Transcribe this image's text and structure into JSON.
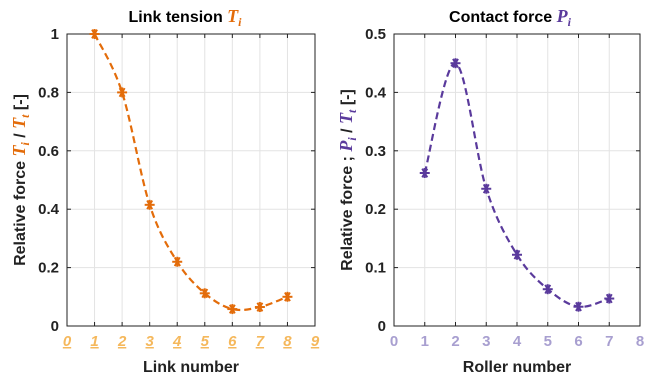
{
  "chart_data": [
    {
      "type": "line",
      "title": "Link tension ",
      "title_symbol": "T",
      "title_subscript": "i",
      "xlabel": "Link number",
      "ylabel_prefix": "Relative force ",
      "ylabel_num": "T",
      "ylabel_num_sub": "i",
      "ylabel_slash": " / ",
      "ylabel_den": "T",
      "ylabel_den_sub": "t",
      "ylabel_suffix": "  [-]",
      "xlim": [
        0,
        9
      ],
      "ylim": [
        0,
        1
      ],
      "xticks": [
        "0",
        "1",
        "2",
        "3",
        "4",
        "5",
        "6",
        "7",
        "8",
        "9"
      ],
      "yticks": [
        "0",
        "0.2",
        "0.4",
        "0.6",
        "0.8",
        "1"
      ],
      "x": [
        1,
        2,
        3,
        4,
        5,
        6,
        7,
        8
      ],
      "y": [
        1.0,
        0.8,
        0.415,
        0.22,
        0.112,
        0.058,
        0.065,
        0.1
      ],
      "grid": true,
      "color": "#e36c0a",
      "tick_color": "#f5b85c",
      "title_color": "#000000"
    },
    {
      "type": "line",
      "title": "Contact force ",
      "title_symbol": "P",
      "title_subscript": "i",
      "xlabel": "Roller number",
      "ylabel_prefix": "Relative force ; ",
      "ylabel_num": "P",
      "ylabel_num_sub": "i",
      "ylabel_slash": " / ",
      "ylabel_den": "T",
      "ylabel_den_sub": "t",
      "ylabel_suffix": "  [-]",
      "xlim": [
        0,
        8
      ],
      "ylim": [
        0,
        0.5
      ],
      "xticks": [
        "0",
        "1",
        "2",
        "3",
        "4",
        "5",
        "6",
        "7",
        "8"
      ],
      "yticks": [
        "0",
        "0.1",
        "0.2",
        "0.3",
        "0.4",
        "0.5"
      ],
      "x": [
        1,
        2,
        3,
        4,
        5,
        6,
        7
      ],
      "y": [
        0.262,
        0.45,
        0.235,
        0.122,
        0.063,
        0.033,
        0.047
      ],
      "grid": true,
      "color": "#5a3a9c",
      "tick_color": "#a89fd0",
      "title_color": "#000000"
    }
  ]
}
